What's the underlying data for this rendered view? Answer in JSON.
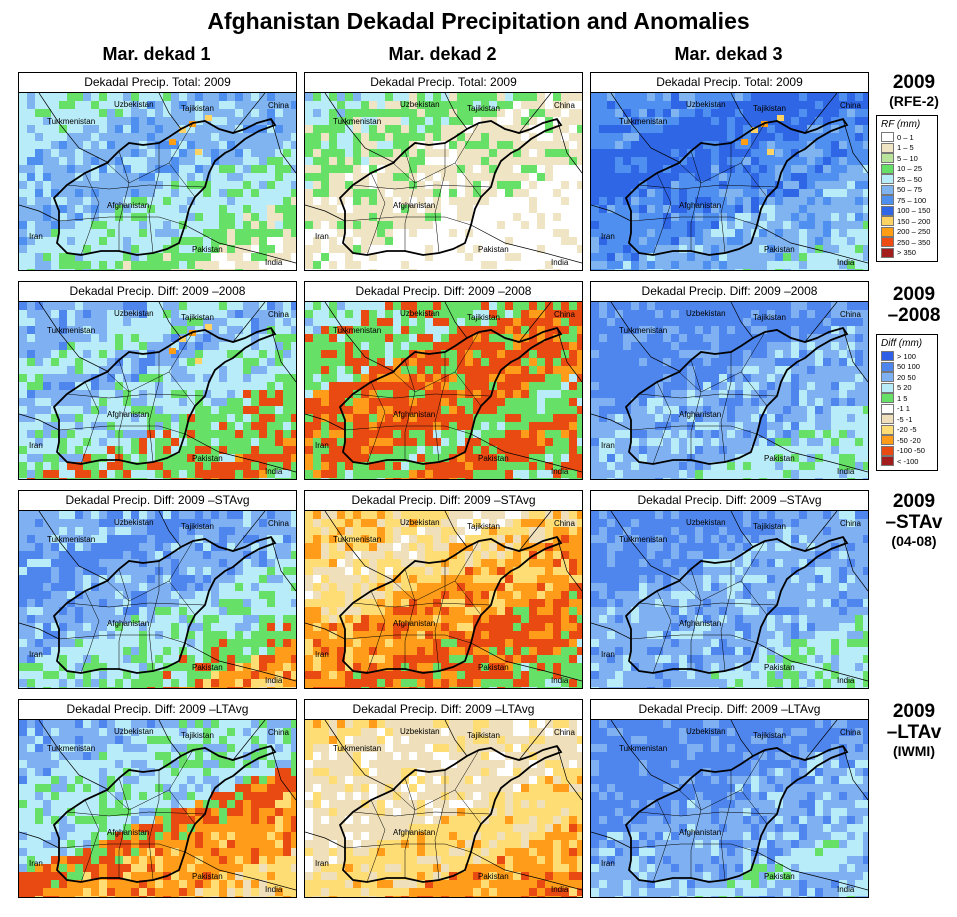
{
  "title": "Afghanistan Dekadal Precipitation and Anomalies",
  "columns": [
    "Mar. dekad 1",
    "Mar. dekad 2",
    "Mar. dekad 3"
  ],
  "place_labels": {
    "uzbekistan": "Uzbekistan",
    "tajikistan": "Tajikistan",
    "china": "China",
    "turkmenistan": "Turkmenistan",
    "afghanistan": "Afghanistan",
    "iran": "Iran",
    "pakistan": "Pakistan",
    "india": "India"
  },
  "rows": [
    {
      "label_line1": "2009",
      "label_line2": "(RFE-2)",
      "panels": [
        {
          "title": "Dekadal Precip. Total: 2009",
          "palette": "rf",
          "levels": [
            3,
            3,
            4,
            4,
            4,
            3,
            3,
            2,
            1,
            0
          ],
          "hotspots": 1
        },
        {
          "title": "Dekadal Precip. Total: 2009",
          "palette": "rf",
          "levels": [
            3,
            2,
            2,
            1,
            1,
            1,
            0,
            0,
            0,
            0
          ],
          "hotspots": 0
        },
        {
          "title": "Dekadal Precip. Total: 2009",
          "palette": "rf",
          "levels": [
            5,
            5,
            6,
            6,
            5,
            5,
            4,
            4,
            3,
            3
          ],
          "hotspots": 1
        }
      ]
    },
    {
      "label_line1": "2009",
      "label_line2": "–2008",
      "panels": [
        {
          "title": "Dekadal Precip. Diff:  2009 –2008",
          "palette": "diff",
          "levels": [
            7,
            7,
            6,
            7,
            6,
            6,
            5,
            5,
            4,
            5
          ],
          "hotspots": 1
        },
        {
          "title": "Dekadal Precip. Diff:  2009 –2008",
          "palette": "diff",
          "levels": [
            6,
            5,
            5,
            4,
            4,
            4,
            5,
            4,
            5,
            5
          ],
          "hotspots": 0
        },
        {
          "title": "Dekadal Precip. Diff:  2009 –2008",
          "palette": "diff",
          "levels": [
            8,
            8,
            8,
            8,
            7,
            7,
            7,
            6,
            6,
            6
          ],
          "hotspots": 0
        }
      ]
    },
    {
      "label_line1": "2009",
      "label_line2": "–STAv",
      "label_line3": "(04-08)",
      "panels": [
        {
          "title": "Dekadal Precip. Diff:  2009 –STAvg",
          "palette": "diff",
          "levels": [
            7,
            7,
            8,
            7,
            7,
            6,
            6,
            5,
            3,
            2
          ],
          "hotspots": 0
        },
        {
          "title": "Dekadal Precip. Diff:  2009 –STAvg",
          "palette": "diff",
          "levels": [
            2,
            2,
            1,
            2,
            3,
            3,
            4,
            4,
            5,
            5
          ],
          "hotspots": 0
        },
        {
          "title": "Dekadal Precip. Diff:  2009 –STAvg",
          "palette": "diff",
          "levels": [
            8,
            8,
            8,
            7,
            7,
            7,
            7,
            6,
            6,
            6
          ],
          "hotspots": 0
        }
      ]
    },
    {
      "label_line1": "2009",
      "label_line2": "–LTAv",
      "label_line3": "(IWMI)",
      "panels": [
        {
          "title": "Dekadal Precip. Diff:  2009 –LTAvg",
          "palette": "diff",
          "levels": [
            7,
            7,
            6,
            6,
            6,
            4,
            3,
            3,
            2,
            2
          ],
          "hotspots": 0
        },
        {
          "title": "Dekadal Precip. Diff:  2009 –LTAvg",
          "palette": "diff",
          "levels": [
            2,
            1,
            1,
            1,
            1,
            2,
            2,
            3,
            3,
            3
          ],
          "hotspots": 0
        },
        {
          "title": "Dekadal Precip. Diff:  2009 –LTAvg",
          "palette": "diff",
          "levels": [
            8,
            8,
            8,
            8,
            7,
            7,
            7,
            6,
            7,
            6
          ],
          "hotspots": 0
        }
      ]
    }
  ],
  "legend_rf": {
    "title": "RF (mm)",
    "items": [
      {
        "label": "0 – 1",
        "color": "#ffffff"
      },
      {
        "label": "1 – 5",
        "color": "#efe4c4"
      },
      {
        "label": "5 – 10",
        "color": "#b9e49c"
      },
      {
        "label": "10 – 25",
        "color": "#66e066"
      },
      {
        "label": "25 – 50",
        "color": "#b8ecf8"
      },
      {
        "label": "50 – 75",
        "color": "#7fb4f0"
      },
      {
        "label": "75 – 100",
        "color": "#4f8ff0"
      },
      {
        "label": "100 – 150",
        "color": "#2f66e6"
      },
      {
        "label": "150 – 200",
        "color": "#ffd264"
      },
      {
        "label": "200 – 250",
        "color": "#ff9e14"
      },
      {
        "label": "250 – 350",
        "color": "#ef4c14"
      },
      {
        "label": "> 350",
        "color": "#a31d1d"
      }
    ]
  },
  "legend_diff": {
    "title": "Diff (mm)",
    "items": [
      {
        "label": "> 100",
        "color": "#2f5fe6"
      },
      {
        "label": " 50  100",
        "color": "#4f86ee"
      },
      {
        "label": " 20  50",
        "color": "#7fb1f2"
      },
      {
        "label": " 5  20",
        "color": "#b8ecf8"
      },
      {
        "label": " 1   5",
        "color": "#66e066"
      },
      {
        "label": " -1   1",
        "color": "#ffffff"
      },
      {
        "label": " -5  -1",
        "color": "#efe0bb"
      },
      {
        "label": "-20  -5",
        "color": "#ffdd75"
      },
      {
        "label": "-50 -20",
        "color": "#ff9c1a"
      },
      {
        "label": "-100 -50",
        "color": "#e84a12"
      },
      {
        "label": "< -100",
        "color": "#a31d1d"
      }
    ]
  },
  "palettes": {
    "rf": [
      "#ffffff",
      "#efe4c4",
      "#66e066",
      "#b8ecf8",
      "#7fb4f0",
      "#4f8ff0",
      "#2f66e6"
    ],
    "diff": [
      "#ffffff",
      "#efe0bb",
      "#ffdd75",
      "#ff9c1a",
      "#e84a12",
      "#66e066",
      "#b8ecf8",
      "#7fb1f2",
      "#4f86ee"
    ],
    "hot": [
      "#ffd264",
      "#ff9e14"
    ]
  }
}
